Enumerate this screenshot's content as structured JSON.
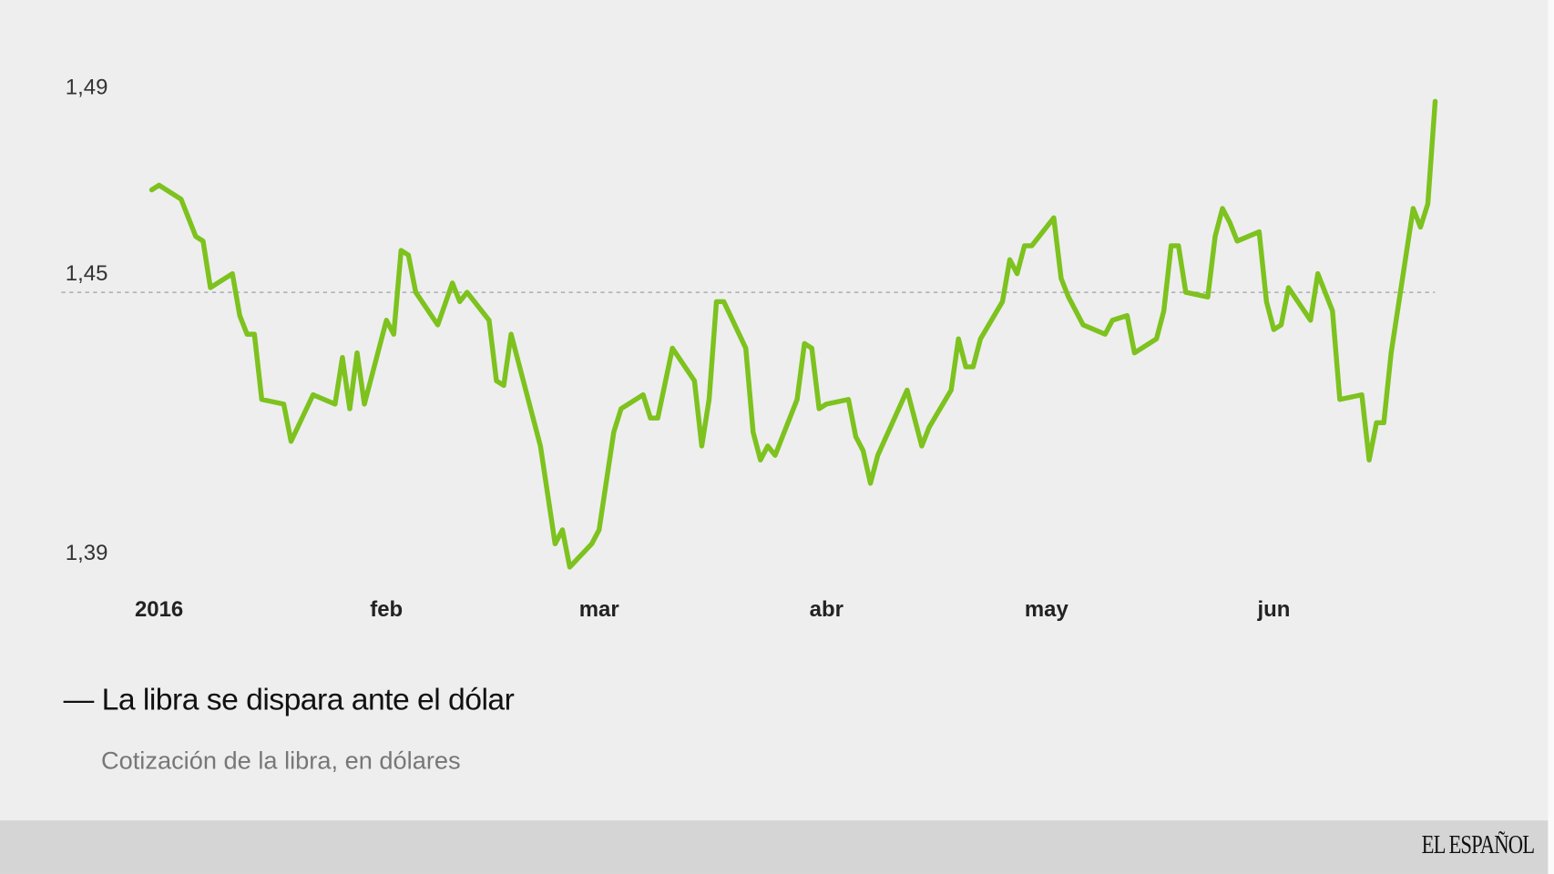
{
  "chart_data": {
    "type": "line",
    "title": "La libra se dispara ante el dólar",
    "title_prefix": "—",
    "subtitle": "Cotización de la libra, en dólares",
    "xlabel": "",
    "ylabel": "",
    "y_ticks": [
      {
        "value": 1.39,
        "label": "1,39"
      },
      {
        "value": 1.45,
        "label": "1,45"
      },
      {
        "value": 1.49,
        "label": "1,49"
      }
    ],
    "x_ticks": [
      {
        "date": "2016-01-01",
        "label": "2016"
      },
      {
        "date": "2016-02-01",
        "label": "feb"
      },
      {
        "date": "2016-03-01",
        "label": "mar"
      },
      {
        "date": "2016-04-01",
        "label": "abr"
      },
      {
        "date": "2016-05-01",
        "label": "may"
      },
      {
        "date": "2016-06-01",
        "label": "jun"
      }
    ],
    "reference_line": {
      "value": 1.45,
      "style": "dashed"
    },
    "grid": false,
    "line_color": "#7dc21e",
    "series": [
      {
        "x": [
          "2015-12-31",
          "2016-01-01",
          "2016-01-04",
          "2016-01-06",
          "2016-01-07",
          "2016-01-08",
          "2016-01-11",
          "2016-01-12",
          "2016-01-13",
          "2016-01-14",
          "2016-01-15",
          "2016-01-18",
          "2016-01-19",
          "2016-01-22",
          "2016-01-25",
          "2016-01-26",
          "2016-01-27",
          "2016-01-28",
          "2016-01-29",
          "2016-02-01",
          "2016-02-02",
          "2016-02-03",
          "2016-02-04",
          "2016-02-05",
          "2016-02-08",
          "2016-02-10",
          "2016-02-11",
          "2016-02-12",
          "2016-02-15",
          "2016-02-16",
          "2016-02-17",
          "2016-02-18",
          "2016-02-22",
          "2016-02-24",
          "2016-02-25",
          "2016-02-26",
          "2016-02-29",
          "2016-03-01",
          "2016-03-03",
          "2016-03-04",
          "2016-03-07",
          "2016-03-08",
          "2016-03-09",
          "2016-03-11",
          "2016-03-14",
          "2016-03-15",
          "2016-03-16",
          "2016-03-17",
          "2016-03-18",
          "2016-03-21",
          "2016-03-22",
          "2016-03-23",
          "2016-03-24",
          "2016-03-25",
          "2016-03-28",
          "2016-03-29",
          "2016-03-30",
          "2016-03-31",
          "2016-04-01",
          "2016-04-04",
          "2016-04-05",
          "2016-04-06",
          "2016-04-07",
          "2016-04-08",
          "2016-04-12",
          "2016-04-14",
          "2016-04-15",
          "2016-04-18",
          "2016-04-19",
          "2016-04-20",
          "2016-04-21",
          "2016-04-22",
          "2016-04-25",
          "2016-04-26",
          "2016-04-27",
          "2016-04-28",
          "2016-04-29",
          "2016-05-02",
          "2016-05-03",
          "2016-05-04",
          "2016-05-06",
          "2016-05-09",
          "2016-05-10",
          "2016-05-12",
          "2016-05-13",
          "2016-05-16",
          "2016-05-17",
          "2016-05-18",
          "2016-05-19",
          "2016-05-20",
          "2016-05-23",
          "2016-05-24",
          "2016-05-25",
          "2016-05-26",
          "2016-05-27",
          "2016-05-30",
          "2016-05-31",
          "2016-06-01",
          "2016-06-02",
          "2016-06-03",
          "2016-06-06",
          "2016-06-07",
          "2016-06-09",
          "2016-06-10",
          "2016-06-13",
          "2016-06-14",
          "2016-06-15",
          "2016-06-16",
          "2016-06-17",
          "2016-06-20",
          "2016-06-21",
          "2016-06-22",
          "2016-06-23"
        ],
        "values": [
          1.472,
          1.473,
          1.47,
          1.462,
          1.461,
          1.451,
          1.454,
          1.445,
          1.441,
          1.441,
          1.427,
          1.426,
          1.418,
          1.428,
          1.426,
          1.436,
          1.425,
          1.437,
          1.426,
          1.444,
          1.441,
          1.459,
          1.458,
          1.45,
          1.443,
          1.452,
          1.448,
          1.45,
          1.444,
          1.431,
          1.43,
          1.441,
          1.417,
          1.396,
          1.399,
          1.391,
          1.396,
          1.399,
          1.42,
          1.425,
          1.428,
          1.423,
          1.423,
          1.438,
          1.431,
          1.417,
          1.427,
          1.448,
          1.448,
          1.438,
          1.42,
          1.414,
          1.417,
          1.415,
          1.427,
          1.439,
          1.438,
          1.425,
          1.426,
          1.427,
          1.419,
          1.416,
          1.409,
          1.415,
          1.429,
          1.417,
          1.421,
          1.429,
          1.44,
          1.434,
          1.434,
          1.44,
          1.448,
          1.457,
          1.454,
          1.46,
          1.46,
          1.466,
          1.453,
          1.449,
          1.443,
          1.441,
          1.444,
          1.445,
          1.437,
          1.44,
          1.446,
          1.46,
          1.46,
          1.45,
          1.449,
          1.462,
          1.468,
          1.465,
          1.461,
          1.463,
          1.448,
          1.442,
          1.443,
          1.451,
          1.444,
          1.454,
          1.446,
          1.427,
          1.428,
          1.414,
          1.422,
          1.422,
          1.437,
          1.468,
          1.464,
          1.469,
          1.491
        ]
      }
    ]
  },
  "footer": {
    "logo_text": "EL ESPAÑOL",
    "background": "#d5d5d5"
  }
}
